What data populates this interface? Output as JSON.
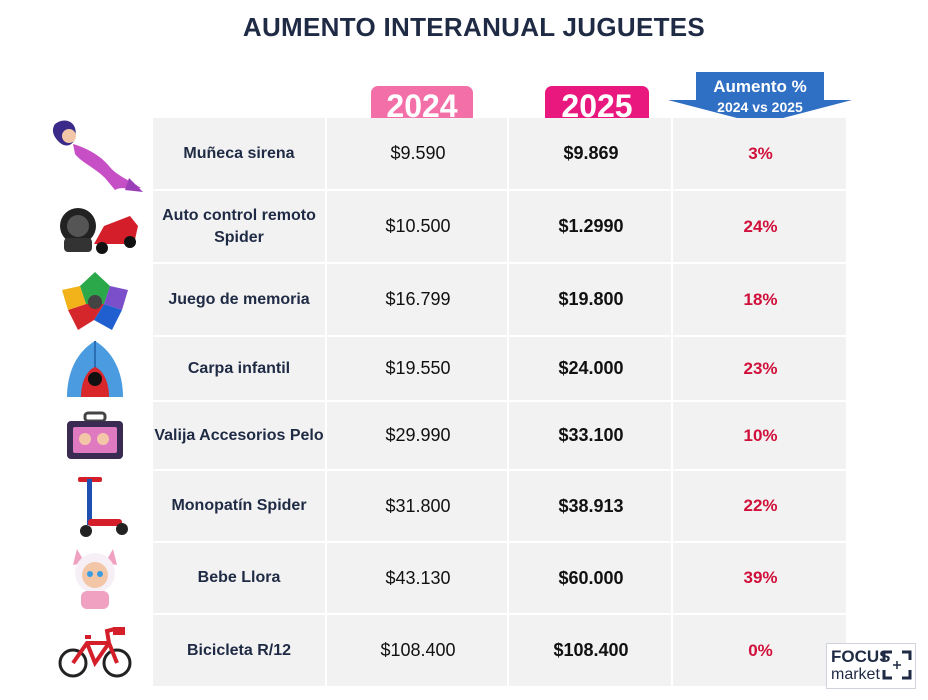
{
  "title": "AUMENTO INTERANUAL JUGUETES",
  "headers": {
    "year_2024": "2024",
    "year_2025": "2025",
    "increase_line1": "Aumento %",
    "increase_line2": "2024 vs 2025"
  },
  "colors": {
    "title": "#1f2a44",
    "pill_2024": "#f36fa7",
    "pill_2025": "#e8187e",
    "arrow": "#2f6fc4",
    "percent": "#d0103a",
    "table_bg": "#f2f2f2"
  },
  "rows": [
    {
      "name": "Muñeca sirena",
      "price_2024": "$9.590",
      "price_2025": "$9.869",
      "increase": "3%",
      "icon": "mermaid-doll-icon"
    },
    {
      "name": "Auto control remoto Spider",
      "price_2024": "$10.500",
      "price_2025": "$1.2990",
      "increase": "24%",
      "icon": "rc-car-icon"
    },
    {
      "name": "Juego de memoria",
      "price_2024": "$16.799",
      "price_2025": "$19.800",
      "increase": "18%",
      "icon": "memory-game-icon"
    },
    {
      "name": "Carpa infantil",
      "price_2024": "$19.550",
      "price_2025": "$24.000",
      "increase": "23%",
      "icon": "kids-tent-icon"
    },
    {
      "name": "Valija Accesorios Pelo",
      "price_2024": "$29.990",
      "price_2025": "$33.100",
      "increase": "10%",
      "icon": "hair-case-icon"
    },
    {
      "name": "Monopatín Spider",
      "price_2024": "$31.800",
      "price_2025": "$38.913",
      "increase": "22%",
      "icon": "scooter-icon"
    },
    {
      "name": "Bebe Llora",
      "price_2024": "$43.130",
      "price_2025": "$60.000",
      "increase": "39%",
      "icon": "crying-baby-icon"
    },
    {
      "name": "Bicicleta R/12",
      "price_2024": "$108.400",
      "price_2025": "$108.400",
      "increase": "0%",
      "icon": "bicycle-icon"
    }
  ],
  "logo": {
    "line1": "FOCUS",
    "line2": "market"
  }
}
